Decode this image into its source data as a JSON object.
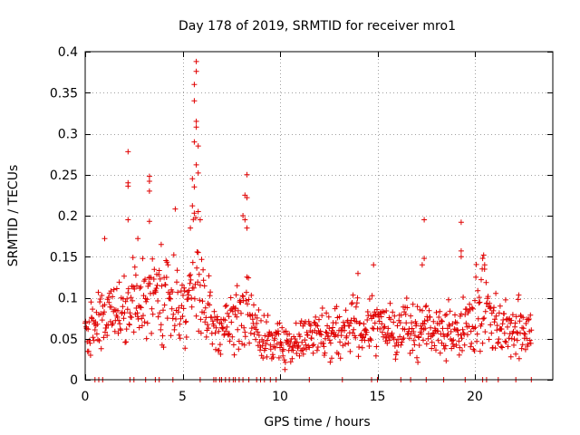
{
  "chart_data": {
    "type": "scatter",
    "title": "Day 178 of 2019, SRMTID for receiver mro1",
    "xlabel": "GPS time / hours",
    "ylabel": "SRMTID / TECUs",
    "xlim": [
      0,
      24
    ],
    "ylim": [
      0,
      0.4
    ],
    "xticks": [
      0,
      5,
      10,
      15,
      20
    ],
    "xtick_labels": [
      "0",
      "5",
      "10",
      "15",
      "20"
    ],
    "yticks": [
      0,
      0.05,
      0.1,
      0.15,
      0.2,
      0.25,
      0.3,
      0.35,
      0.4
    ],
    "ytick_labels": [
      "0",
      "0.05",
      "0.1",
      "0.15",
      "0.2",
      "0.25",
      "0.3",
      "0.35",
      "0.4"
    ],
    "grid": true,
    "marker": "+",
    "color": "#e00000",
    "series": [
      {
        "name": "SRMTID",
        "sampling_interval_hours": 0.025,
        "x_start": 0.0,
        "x_end": 22.9,
        "baseline_profile": [
          [
            0.0,
            0.06
          ],
          [
            1.0,
            0.075
          ],
          [
            2.0,
            0.085
          ],
          [
            3.0,
            0.095
          ],
          [
            4.0,
            0.1
          ],
          [
            5.0,
            0.095
          ],
          [
            5.7,
            0.12
          ],
          [
            6.5,
            0.06
          ],
          [
            7.5,
            0.065
          ],
          [
            8.3,
            0.09
          ],
          [
            9.0,
            0.05
          ],
          [
            10.0,
            0.045
          ],
          [
            11.0,
            0.045
          ],
          [
            12.0,
            0.055
          ],
          [
            13.0,
            0.06
          ],
          [
            14.0,
            0.06
          ],
          [
            15.0,
            0.065
          ],
          [
            16.0,
            0.06
          ],
          [
            17.0,
            0.06
          ],
          [
            18.0,
            0.06
          ],
          [
            19.0,
            0.055
          ],
          [
            20.0,
            0.075
          ],
          [
            20.5,
            0.095
          ],
          [
            21.0,
            0.07
          ],
          [
            22.0,
            0.06
          ],
          [
            22.9,
            0.06
          ]
        ],
        "peaks": [
          {
            "x": 5.7,
            "y": 0.388
          },
          {
            "x": 5.7,
            "y": 0.376
          },
          {
            "x": 5.6,
            "y": 0.36
          },
          {
            "x": 5.6,
            "y": 0.34
          },
          {
            "x": 5.7,
            "y": 0.315
          },
          {
            "x": 5.7,
            "y": 0.308
          },
          {
            "x": 5.6,
            "y": 0.29
          },
          {
            "x": 5.8,
            "y": 0.285
          },
          {
            "x": 5.7,
            "y": 0.262
          },
          {
            "x": 5.8,
            "y": 0.252
          },
          {
            "x": 5.5,
            "y": 0.245
          },
          {
            "x": 5.6,
            "y": 0.235
          },
          {
            "x": 5.5,
            "y": 0.212
          },
          {
            "x": 5.8,
            "y": 0.205
          },
          {
            "x": 5.9,
            "y": 0.195
          },
          {
            "x": 5.4,
            "y": 0.185
          },
          {
            "x": 2.2,
            "y": 0.278
          },
          {
            "x": 2.2,
            "y": 0.24
          },
          {
            "x": 2.2,
            "y": 0.236
          },
          {
            "x": 2.2,
            "y": 0.195
          },
          {
            "x": 3.3,
            "y": 0.248
          },
          {
            "x": 3.3,
            "y": 0.242
          },
          {
            "x": 3.3,
            "y": 0.23
          },
          {
            "x": 3.3,
            "y": 0.193
          },
          {
            "x": 8.3,
            "y": 0.25
          },
          {
            "x": 8.2,
            "y": 0.225
          },
          {
            "x": 8.3,
            "y": 0.222
          },
          {
            "x": 8.1,
            "y": 0.2
          },
          {
            "x": 8.2,
            "y": 0.195
          },
          {
            "x": 8.3,
            "y": 0.185
          },
          {
            "x": 17.4,
            "y": 0.195
          },
          {
            "x": 19.3,
            "y": 0.192
          },
          {
            "x": 17.4,
            "y": 0.148
          },
          {
            "x": 17.3,
            "y": 0.14
          },
          {
            "x": 19.3,
            "y": 0.157
          },
          {
            "x": 19.3,
            "y": 0.15
          },
          {
            "x": 20.4,
            "y": 0.148
          },
          {
            "x": 20.5,
            "y": 0.14
          },
          {
            "x": 3.9,
            "y": 0.165
          },
          {
            "x": 2.7,
            "y": 0.172
          },
          {
            "x": 1.0,
            "y": 0.172
          },
          {
            "x": 14.8,
            "y": 0.14
          }
        ],
        "zero_x": [
          0.5,
          0.7,
          0.9,
          2.3,
          2.5,
          3.1,
          3.6,
          3.8,
          4.5,
          5.9,
          6.6,
          6.7,
          6.9,
          7.0,
          7.2,
          7.4,
          7.6,
          7.7,
          7.9,
          8.1,
          8.4,
          8.8,
          9.0,
          9.2,
          9.5,
          9.8,
          11.5,
          13.2,
          14.7,
          15.0,
          16.2,
          16.7,
          17.5,
          18.4,
          19.5,
          20.4,
          20.6,
          21.2,
          22.1,
          22.9
        ]
      }
    ]
  }
}
